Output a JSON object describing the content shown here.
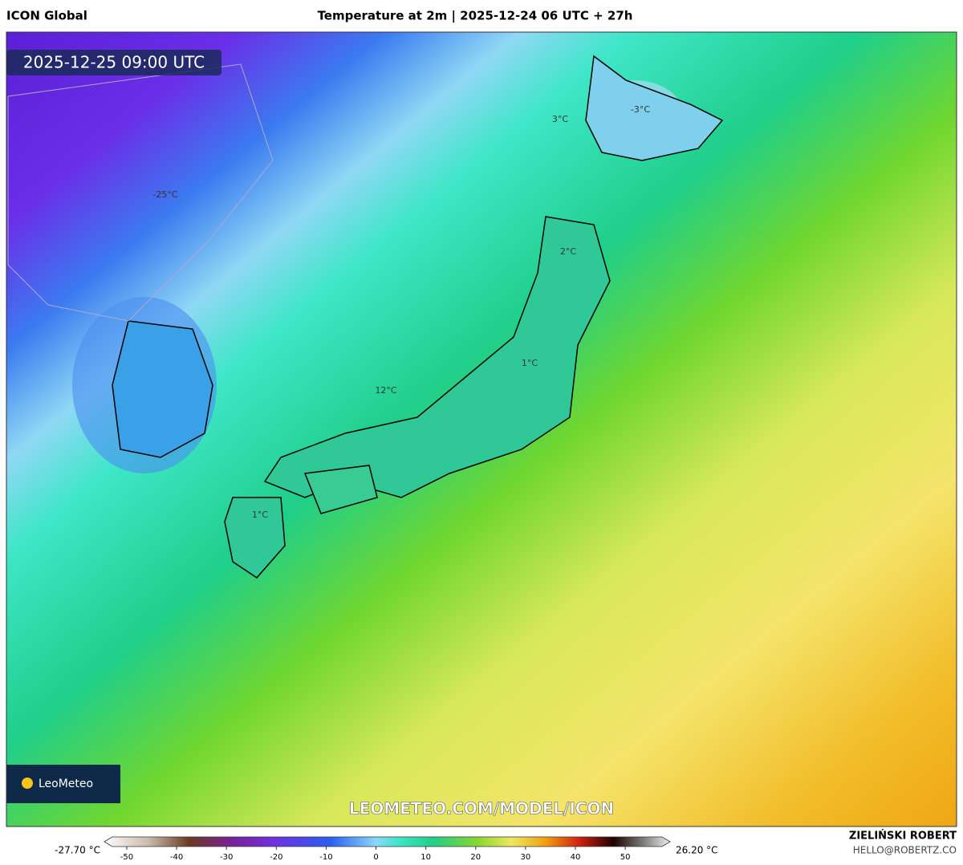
{
  "header": {
    "model": "ICON Global",
    "title": "Temperature at 2m | 2025-12-24 06 UTC + 27h"
  },
  "map": {
    "timestamp": "2025-12-25 09:00 UTC",
    "labels": [
      "-25°C",
      "3°C",
      "-3°C",
      "2°C",
      "1°C",
      "12°C",
      "1°C"
    ],
    "logo": "LeoMeteo",
    "watermark": "LEOMETEO.COM/MODEL/ICON"
  },
  "colorbar": {
    "min_label": "-27.70 °C",
    "max_label": "26.20 °C",
    "lim": [
      -54.5,
      59
    ],
    "ticks": [
      -50,
      -40,
      -30,
      -20,
      -10,
      0,
      10,
      20,
      30,
      40,
      50
    ]
  },
  "footer": {
    "author": "ZIELIŃSKI ROBERT",
    "email": "HELLO@ROBERTZ.CO"
  }
}
